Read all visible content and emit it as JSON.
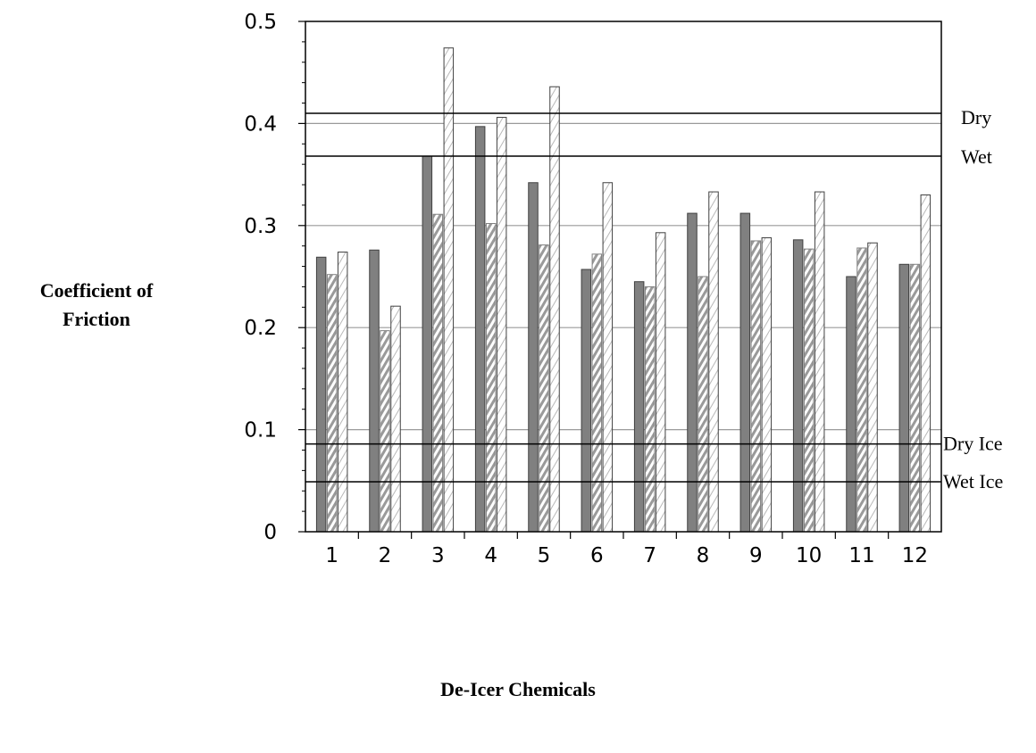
{
  "chart_data": {
    "type": "bar",
    "title": "",
    "xlabel": "De-Icer Chemicals",
    "ylabel_lines": [
      "Coefficient of",
      "Friction"
    ],
    "categories": [
      "1",
      "2",
      "3",
      "4",
      "5",
      "6",
      "7",
      "8",
      "9",
      "10",
      "11",
      "12"
    ],
    "series": [
      {
        "values": [
          0.269,
          0.276,
          0.368,
          0.397,
          0.342,
          0.257,
          0.245,
          0.312,
          0.312,
          0.286,
          0.25,
          0.262
        ],
        "color": "#808080",
        "style": "solid"
      },
      {
        "values": [
          0.252,
          0.197,
          0.311,
          0.302,
          0.281,
          0.272,
          0.24,
          0.25,
          0.285,
          0.277,
          0.278,
          0.262
        ],
        "color": "#b0b0b0",
        "style": "diagonal-hatch"
      },
      {
        "values": [
          0.274,
          0.221,
          0.474,
          0.406,
          0.436,
          0.342,
          0.293,
          0.333,
          0.288,
          0.333,
          0.283,
          0.33
        ],
        "color": "#ffffff",
        "style": "light-hatch"
      }
    ],
    "reference_lines": [
      {
        "label": "Dry",
        "value": 0.41
      },
      {
        "label": "Wet",
        "value": 0.368
      },
      {
        "label": "Dry Ice",
        "value": 0.086
      },
      {
        "label": "Wet Ice",
        "value": 0.049
      }
    ],
    "ylim": [
      0,
      0.5
    ],
    "yticks": [
      "0",
      "0.1",
      "0.2",
      "0.3",
      "0.4",
      "0.5"
    ],
    "grid": true,
    "legend": "none"
  }
}
